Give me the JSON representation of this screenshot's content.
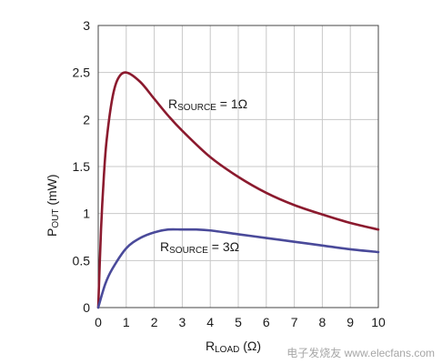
{
  "chart_data": {
    "type": "line",
    "xlabel_main": "R",
    "xlabel_sub": "LOAD",
    "xlabel_unit": " (Ω)",
    "ylabel_main": "P",
    "ylabel_sub": "OUT",
    "ylabel_unit": " (mW)",
    "xlim": [
      0,
      10
    ],
    "ylim": [
      0,
      3
    ],
    "x_ticks": [
      "0",
      "1",
      "2",
      "3",
      "4",
      "5",
      "6",
      "7",
      "8",
      "9",
      "10"
    ],
    "y_ticks": [
      "0",
      "0.5",
      "1",
      "1.5",
      "2",
      "2.5",
      "3"
    ],
    "grid": true,
    "series": [
      {
        "name_main": "R",
        "name_sub": "SOURCE",
        "name_tail": " = 1Ω",
        "color": "#8b1a2e",
        "x": [
          0,
          0.1,
          0.2,
          0.3,
          0.5,
          0.7,
          1.0,
          1.5,
          2,
          2.5,
          3,
          4,
          5,
          6,
          7,
          8,
          9,
          10
        ],
        "y": [
          0,
          0.83,
          1.39,
          1.78,
          2.22,
          2.43,
          2.5,
          2.4,
          2.22,
          2.04,
          1.88,
          1.6,
          1.39,
          1.22,
          1.09,
          0.99,
          0.9,
          0.83
        ]
      },
      {
        "name_main": "R",
        "name_sub": "SOURCE",
        "name_tail": " = 3Ω",
        "color": "#4a4a9a",
        "x": [
          0,
          0.25,
          0.5,
          1,
          1.5,
          2,
          2.5,
          3,
          3.5,
          4,
          5,
          6,
          7,
          8,
          9,
          10
        ],
        "y": [
          0,
          0.25,
          0.41,
          0.63,
          0.74,
          0.8,
          0.83,
          0.83,
          0.83,
          0.82,
          0.78,
          0.74,
          0.7,
          0.66,
          0.62,
          0.59
        ]
      }
    ]
  },
  "watermark": "电子发烧友 www.elecfans.com"
}
